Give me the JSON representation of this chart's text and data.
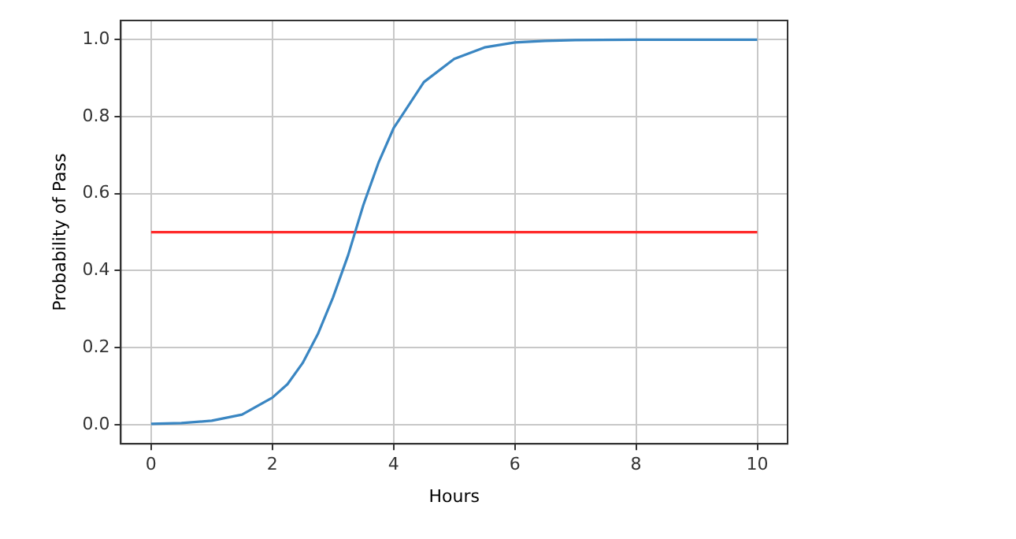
{
  "chart_data": {
    "type": "line",
    "xlabel": "Hours",
    "ylabel": "Probability of Pass",
    "xlim": [
      -0.5,
      10.5
    ],
    "ylim": [
      -0.05,
      1.05
    ],
    "xticks": [
      0,
      2,
      4,
      6,
      8,
      10
    ],
    "yticks": [
      {
        "value": 0,
        "label": "0.0"
      },
      {
        "value": 0.2,
        "label": "0.2"
      },
      {
        "value": 0.4,
        "label": "0.4"
      },
      {
        "value": 0.6,
        "label": "0.6"
      },
      {
        "value": 0.8,
        "label": "0.8"
      },
      {
        "value": 1,
        "label": "1.0"
      }
    ],
    "grid": true,
    "legend": false,
    "marker": "none",
    "line_style": "solid",
    "series": [
      {
        "color": "#3a86c2",
        "x": [
          0,
          0.5,
          1,
          1.5,
          2,
          2.25,
          2.5,
          2.75,
          3,
          3.25,
          3.5,
          3.75,
          4,
          4.5,
          5,
          5.5,
          6,
          6.5,
          7,
          8,
          9,
          10
        ],
        "values": [
          0.002,
          0.004,
          0.01,
          0.026,
          0.07,
          0.105,
          0.16,
          0.235,
          0.33,
          0.44,
          0.57,
          0.68,
          0.77,
          0.89,
          0.95,
          0.98,
          0.993,
          0.997,
          0.999,
          1,
          1,
          1
        ]
      },
      {
        "color": "#ff2a2a",
        "x": [
          0,
          10
        ],
        "values": [
          0.5,
          0.5
        ]
      }
    ]
  }
}
